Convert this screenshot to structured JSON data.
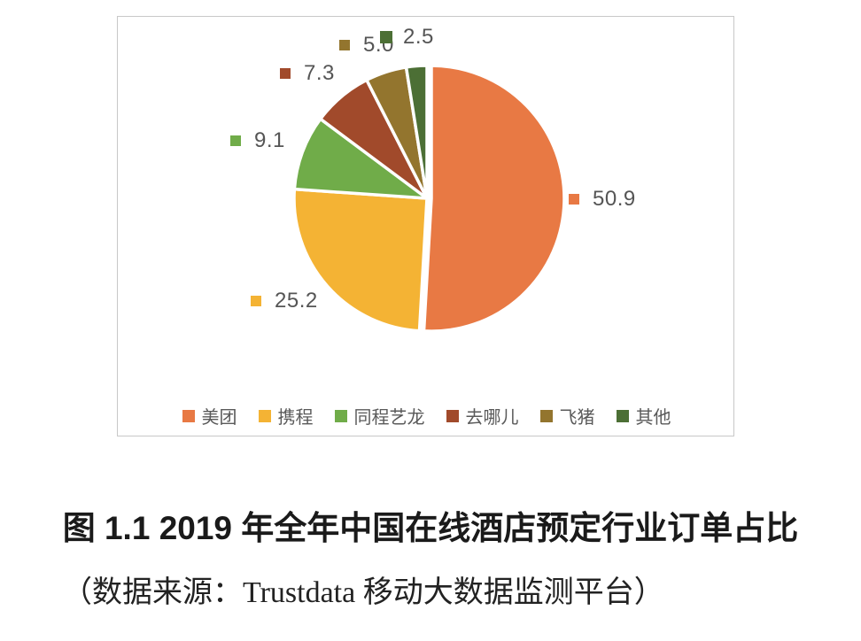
{
  "chart_data": {
    "type": "pie",
    "slices": [
      {
        "id": "meituan",
        "name": "美团",
        "value": 50.9,
        "color": "#e87944"
      },
      {
        "id": "ctrip",
        "name": "携程",
        "value": 25.2,
        "color": "#f4b334"
      },
      {
        "id": "tongcheng-elong",
        "name": "同程艺龙",
        "value": 9.1,
        "color": "#70ac49"
      },
      {
        "id": "qunar",
        "name": "去哪儿",
        "value": 7.3,
        "color": "#a14a2b"
      },
      {
        "id": "fliggy",
        "name": "飞猪",
        "value": 5.0,
        "color": "#93752e"
      },
      {
        "id": "other",
        "name": "其他",
        "value": 2.5,
        "color": "#4c6f35"
      }
    ],
    "value_labels": [
      "50.9",
      "25.2",
      "9.1",
      "7.3",
      "5.0",
      "2.5"
    ],
    "start_angle_deg": 0,
    "direction": "clockwise",
    "legend_position": "bottom",
    "grid": "off"
  },
  "caption": {
    "line1": "图 1.1 2019 年全年中国在线酒店预定行业订单占比",
    "line2": "（数据来源：Trustdata 移动大数据监测平台）"
  },
  "colors": {
    "value_label_text": "#555555",
    "legend_text": "#595959",
    "frame_border": "#c8c8c8",
    "background": "#ffffff"
  }
}
